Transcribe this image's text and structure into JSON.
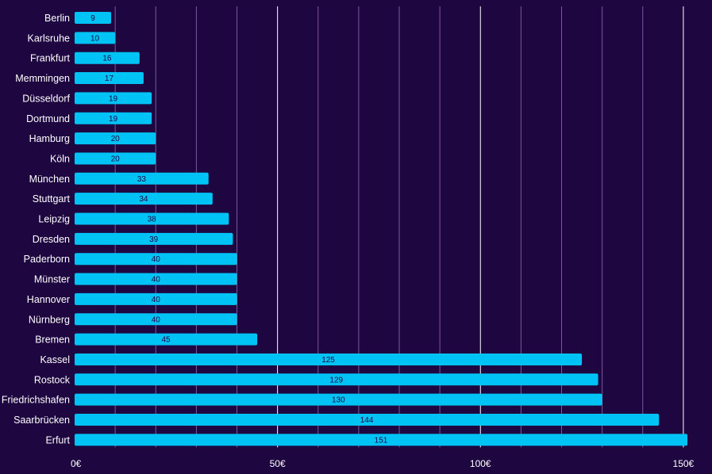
{
  "chart_data": {
    "type": "bar",
    "orientation": "horizontal",
    "categories": [
      "Berlin",
      "Karlsruhe",
      "Frankfurt",
      "Memmingen",
      "Düsseldorf",
      "Dortmund",
      "Hamburg",
      "Köln",
      "München",
      "Stuttgart",
      "Leipzig",
      "Dresden",
      "Paderborn",
      "Münster",
      "Hannover",
      "Nürnberg",
      "Bremen",
      "Kassel",
      "Rostock",
      "Friedrichshafen",
      "Saarbrücken",
      "Erfurt"
    ],
    "values": [
      9,
      10,
      16,
      17,
      19,
      19,
      20,
      20,
      33,
      34,
      38,
      39,
      40,
      40,
      40,
      40,
      45,
      125,
      129,
      130,
      144,
      151
    ],
    "xlim": [
      0,
      151
    ],
    "x_ticks": [
      {
        "value": 0,
        "label": "0€"
      },
      {
        "value": 50,
        "label": "50€"
      },
      {
        "value": 100,
        "label": "100€"
      },
      {
        "value": 150,
        "label": "150€"
      }
    ],
    "minor_grid_step": 10,
    "grid": true,
    "title": "",
    "xlabel": "",
    "ylabel": "",
    "colors": {
      "background": "#1e0641",
      "bar": "#00c3f5",
      "label": "#ffffff",
      "data_label": "#1e0641",
      "grid_major": "#ffffff",
      "grid_minor": "#7a5a9c"
    }
  }
}
